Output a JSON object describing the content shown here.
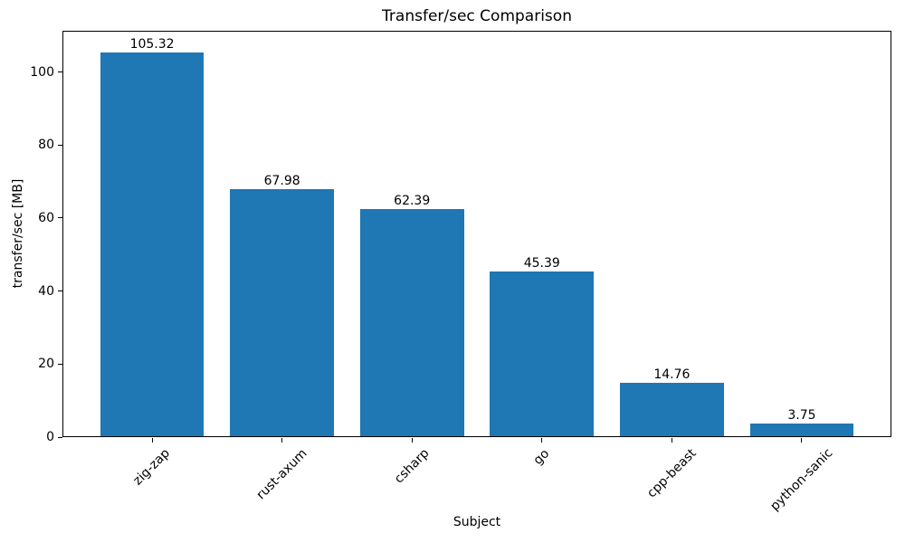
{
  "chart_data": {
    "type": "bar",
    "title": "Transfer/sec Comparison",
    "xlabel": "Subject",
    "ylabel": "transfer/sec [MB]",
    "categories": [
      "zig-zap",
      "rust-axum",
      "csharp",
      "go",
      "cpp-beast",
      "python-sanic"
    ],
    "values": [
      105.32,
      67.98,
      62.39,
      45.39,
      14.76,
      3.75
    ],
    "value_labels": [
      "105.32",
      "67.98",
      "62.39",
      "45.39",
      "14.76",
      "3.75"
    ],
    "yticks": [
      0,
      20,
      40,
      60,
      80,
      100
    ],
    "ylim": [
      0,
      111.3
    ],
    "bar_color": "#1f77b4",
    "axis_color": "#000000",
    "text_color": "#000000",
    "grid": false,
    "legend": "none",
    "x_tick_rotation_deg": 45
  }
}
